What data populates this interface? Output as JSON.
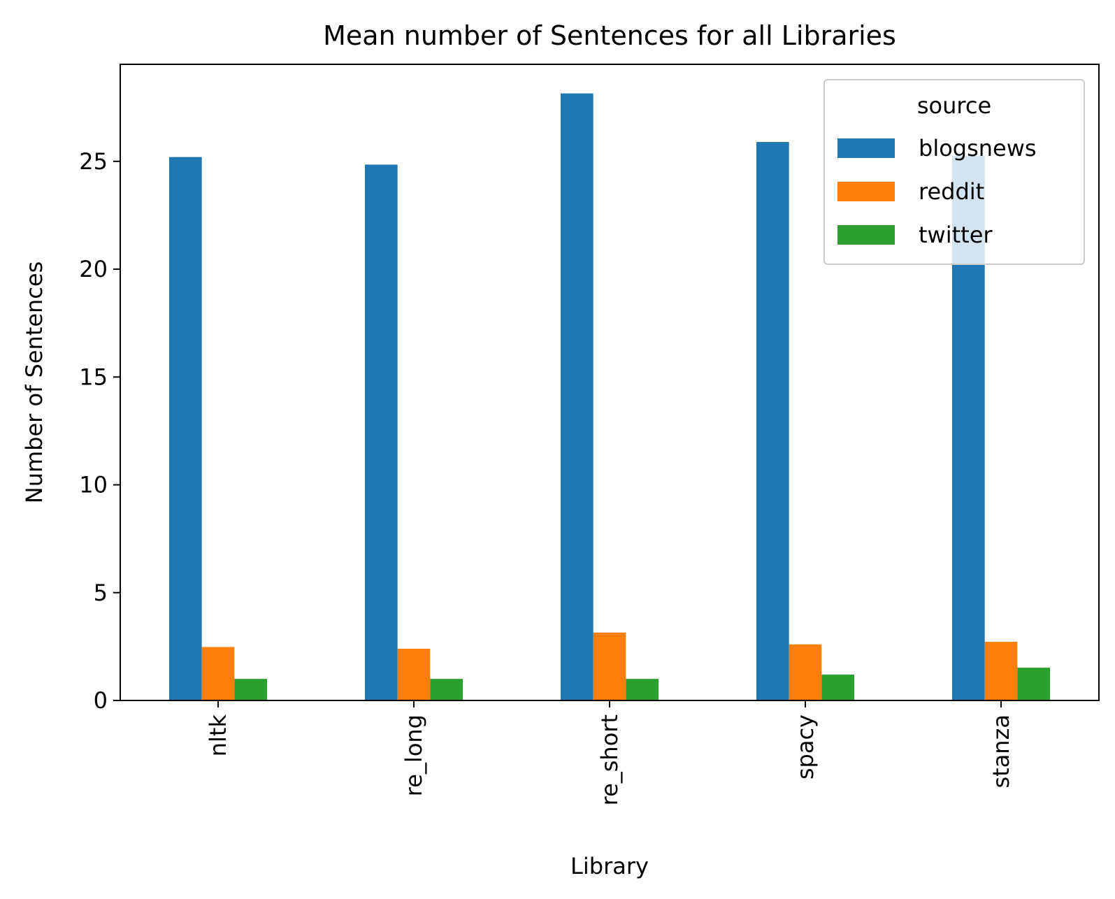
{
  "chart_data": {
    "type": "bar",
    "title": "Mean number of Sentences for all Libraries",
    "xlabel": "Library",
    "ylabel": "Number of Sentences",
    "categories": [
      "nltk",
      "re_long",
      "re_short",
      "spacy",
      "stanza"
    ],
    "series": [
      {
        "name": "blogsnews",
        "color": "#1f77b4",
        "values": [
          25.2,
          24.85,
          28.15,
          25.9,
          25.25
        ]
      },
      {
        "name": "reddit",
        "color": "#ff7f0e",
        "values": [
          2.48,
          2.4,
          3.15,
          2.6,
          2.72
        ]
      },
      {
        "name": "twitter",
        "color": "#2ca02c",
        "values": [
          1.0,
          1.0,
          1.0,
          1.2,
          1.52
        ]
      }
    ],
    "ylim": [
      0,
      29.5
    ],
    "yticks": [
      0,
      5,
      10,
      15,
      20,
      25
    ],
    "legend": {
      "title": "source",
      "position": "top-right"
    },
    "grid": false
  }
}
